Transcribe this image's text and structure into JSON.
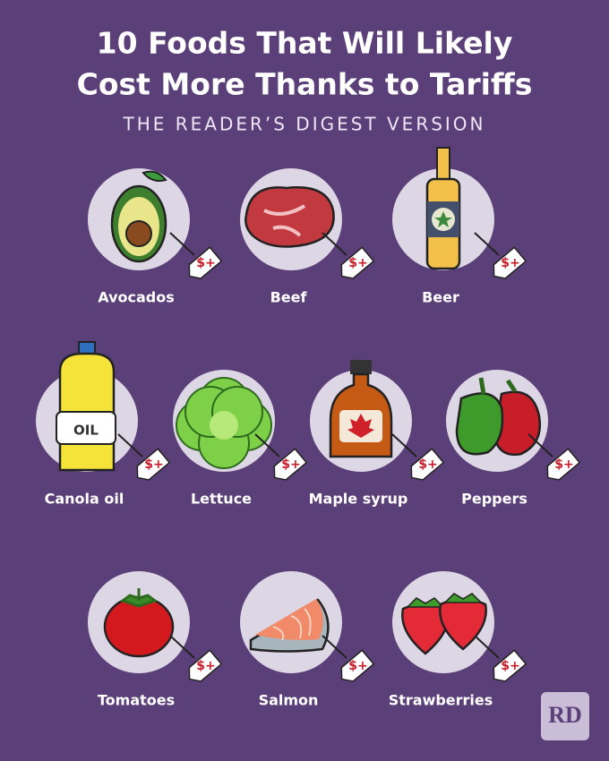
{
  "header": {
    "title_line1": "10 Foods That Will Likely",
    "title_line2": "Cost More Thanks to Tariffs",
    "subtitle": "THE READER’S DIGEST VERSION"
  },
  "items": [
    {
      "label": "Avocados",
      "tag": "$+"
    },
    {
      "label": "Beef",
      "tag": "$+"
    },
    {
      "label": "Beer",
      "tag": "$+"
    },
    {
      "label": "Canola oil",
      "tag": "$+",
      "icon_text": "OIL"
    },
    {
      "label": "Lettuce",
      "tag": "$+"
    },
    {
      "label": "Maple syrup",
      "tag": "$+"
    },
    {
      "label": "Peppers",
      "tag": "$+"
    },
    {
      "label": "Tomatoes",
      "tag": "$+"
    },
    {
      "label": "Salmon",
      "tag": "$+"
    },
    {
      "label": "Strawberries",
      "tag": "$+"
    }
  ],
  "logo": "RD"
}
